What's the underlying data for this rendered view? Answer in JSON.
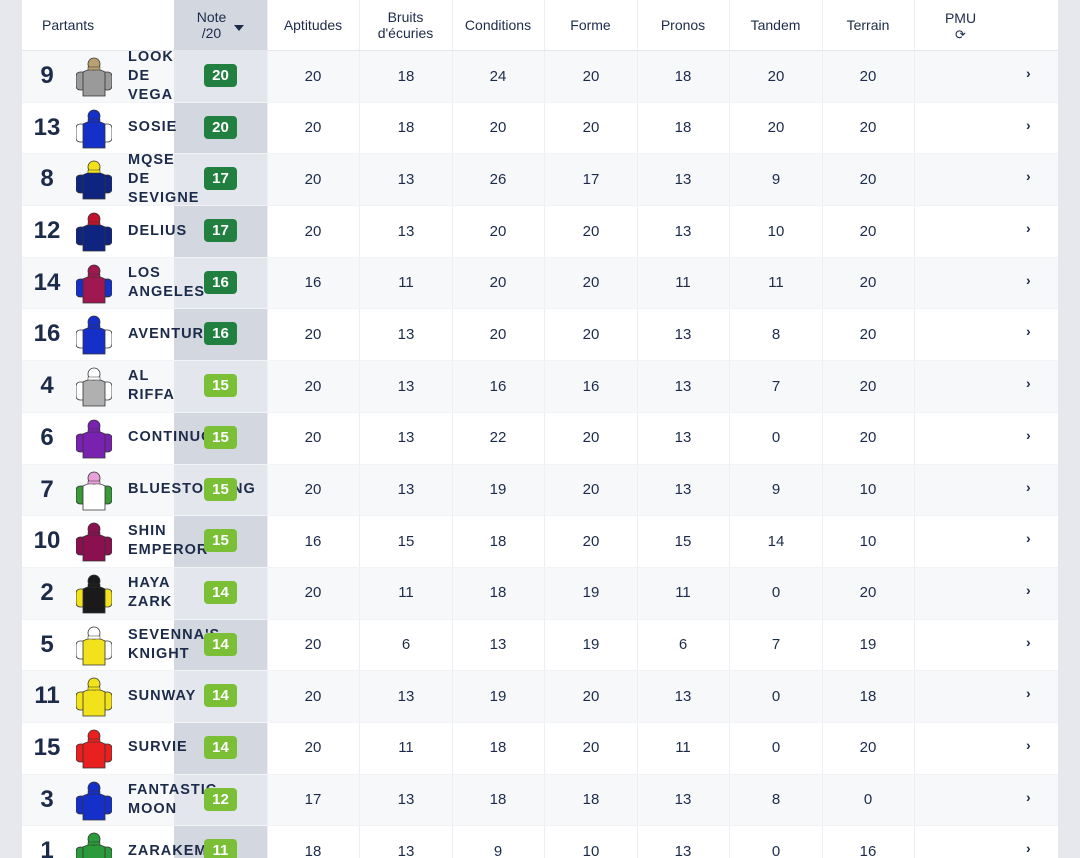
{
  "header": {
    "partants": "Partants",
    "note_line1": "Note",
    "note_line2": "/20",
    "aptitudes": "Aptitudes",
    "bruits_line1": "Bruits",
    "bruits_line2": "d'écuries",
    "conditions": "Conditions",
    "forme": "Forme",
    "pronos": "Pronos",
    "tandem": "Tandem",
    "terrain": "Terrain",
    "pmu": "PMU",
    "pmu_icon": "refresh-icon",
    "note_sort_icon": "caret-down-icon"
  },
  "colors": {
    "badge_dark": "#21803f",
    "badge_light": "#7bbf37",
    "note_band": "#d3d7df"
  },
  "runners": [
    {
      "num": "9",
      "name": "LOOK\nDE\nVEGA",
      "note": "20",
      "aptitudes": "20",
      "bruits": "18",
      "conditions": "24",
      "forme": "20",
      "pronos": "18",
      "tandem": "20",
      "terrain": "20",
      "silk": {
        "body": "#9a9a9a",
        "cap": "#b8a070",
        "sleeve": "#9a9a9a"
      }
    },
    {
      "num": "13",
      "name": "SOSIE",
      "note": "20",
      "aptitudes": "20",
      "bruits": "18",
      "conditions": "20",
      "forme": "20",
      "pronos": "18",
      "tandem": "20",
      "terrain": "20",
      "silk": {
        "body": "#1530c8",
        "cap": "#1530c8",
        "sleeve": "#ffffff"
      }
    },
    {
      "num": "8",
      "name": "MQSE\nDE\nSEVIGNE",
      "note": "17",
      "aptitudes": "20",
      "bruits": "13",
      "conditions": "26",
      "forme": "17",
      "pronos": "13",
      "tandem": "9",
      "terrain": "20",
      "silk": {
        "body": "#0f2380",
        "cap": "#f2e21c",
        "sleeve": "#0f2380"
      }
    },
    {
      "num": "12",
      "name": "DELIUS",
      "note": "17",
      "aptitudes": "20",
      "bruits": "13",
      "conditions": "20",
      "forme": "20",
      "pronos": "13",
      "tandem": "10",
      "terrain": "20",
      "silk": {
        "body": "#0f2380",
        "cap": "#c0142e",
        "sleeve": "#0f2380"
      }
    },
    {
      "num": "14",
      "name": "LOS\nANGELES",
      "note": "16",
      "aptitudes": "16",
      "bruits": "11",
      "conditions": "20",
      "forme": "20",
      "pronos": "11",
      "tandem": "11",
      "terrain": "20",
      "silk": {
        "body": "#a01850",
        "cap": "#a01850",
        "sleeve": "#1530c8"
      }
    },
    {
      "num": "16",
      "name": "AVENTURE",
      "note": "16",
      "aptitudes": "20",
      "bruits": "13",
      "conditions": "20",
      "forme": "20",
      "pronos": "13",
      "tandem": "8",
      "terrain": "20",
      "silk": {
        "body": "#1530c8",
        "cap": "#1530c8",
        "sleeve": "#ffffff"
      }
    },
    {
      "num": "4",
      "name": "AL\nRIFFA",
      "note": "15",
      "aptitudes": "20",
      "bruits": "13",
      "conditions": "16",
      "forme": "16",
      "pronos": "13",
      "tandem": "7",
      "terrain": "20",
      "silk": {
        "body": "#b0b0b0",
        "cap": "#ffffff",
        "sleeve": "#ffffff"
      }
    },
    {
      "num": "6",
      "name": "CONTINUO",
      "note": "15",
      "aptitudes": "20",
      "bruits": "13",
      "conditions": "22",
      "forme": "20",
      "pronos": "13",
      "tandem": "0",
      "terrain": "20",
      "silk": {
        "body": "#7a22b0",
        "cap": "#7a22b0",
        "sleeve": "#7a22b0"
      }
    },
    {
      "num": "7",
      "name": "BLUESTOCKING",
      "note": "15",
      "aptitudes": "20",
      "bruits": "13",
      "conditions": "19",
      "forme": "20",
      "pronos": "13",
      "tandem": "9",
      "terrain": "10",
      "silk": {
        "body": "#ffffff",
        "cap": "#e8a0d8",
        "sleeve": "#3a9a3a"
      }
    },
    {
      "num": "10",
      "name": "SHIN\nEMPEROR",
      "note": "15",
      "aptitudes": "16",
      "bruits": "15",
      "conditions": "18",
      "forme": "20",
      "pronos": "15",
      "tandem": "14",
      "terrain": "10",
      "silk": {
        "body": "#8a1050",
        "cap": "#8a1050",
        "sleeve": "#8a1050"
      }
    },
    {
      "num": "2",
      "name": "HAYA\nZARK",
      "note": "14",
      "aptitudes": "20",
      "bruits": "11",
      "conditions": "18",
      "forme": "19",
      "pronos": "11",
      "tandem": "0",
      "terrain": "20",
      "silk": {
        "body": "#1a1a1a",
        "cap": "#1a1a1a",
        "sleeve": "#f2e21c"
      }
    },
    {
      "num": "5",
      "name": "SEVENNA'S\nKNIGHT",
      "note": "14",
      "aptitudes": "20",
      "bruits": "6",
      "conditions": "13",
      "forme": "19",
      "pronos": "6",
      "tandem": "7",
      "terrain": "19",
      "silk": {
        "body": "#f2e21c",
        "cap": "#ffffff",
        "sleeve": "#ffffff"
      }
    },
    {
      "num": "11",
      "name": "SUNWAY",
      "note": "14",
      "aptitudes": "20",
      "bruits": "13",
      "conditions": "19",
      "forme": "20",
      "pronos": "13",
      "tandem": "0",
      "terrain": "18",
      "silk": {
        "body": "#f2e21c",
        "cap": "#f2e21c",
        "sleeve": "#f2e21c"
      }
    },
    {
      "num": "15",
      "name": "SURVIE",
      "note": "14",
      "aptitudes": "20",
      "bruits": "11",
      "conditions": "18",
      "forme": "20",
      "pronos": "11",
      "tandem": "0",
      "terrain": "20",
      "silk": {
        "body": "#e82020",
        "cap": "#e82020",
        "sleeve": "#e82020"
      }
    },
    {
      "num": "3",
      "name": "FANTASTIC\nMOON",
      "note": "12",
      "aptitudes": "17",
      "bruits": "13",
      "conditions": "18",
      "forme": "18",
      "pronos": "13",
      "tandem": "8",
      "terrain": "0",
      "silk": {
        "body": "#1530c8",
        "cap": "#1530c8",
        "sleeve": "#1530c8"
      }
    },
    {
      "num": "1",
      "name": "ZARAKEM",
      "note": "11",
      "aptitudes": "18",
      "bruits": "13",
      "conditions": "9",
      "forme": "10",
      "pronos": "13",
      "tandem": "0",
      "terrain": "16",
      "silk": {
        "body": "#2a9a3a",
        "cap": "#2a9a3a",
        "sleeve": "#2a9a3a"
      }
    }
  ],
  "row_action_icon": "chevron-right-icon"
}
